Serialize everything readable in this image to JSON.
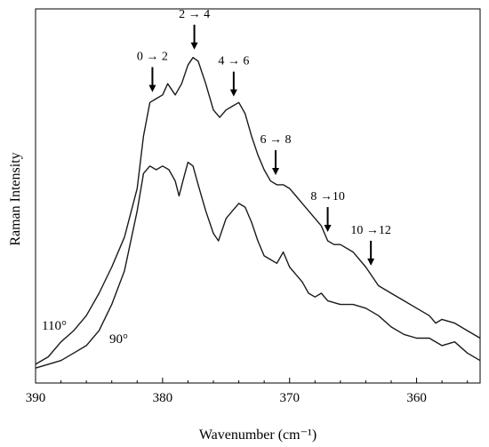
{
  "chart_data": {
    "type": "line",
    "title": "",
    "xlabel": "Wavenumber (cm⁻¹)",
    "ylabel": "Raman Intensity",
    "xlim": [
      390,
      355
    ],
    "x_reversed": true,
    "ylim": [
      0,
      100
    ],
    "y_ticks_shown": false,
    "grid": false,
    "legend": "none",
    "x_ticks": [
      390,
      380,
      370,
      360
    ],
    "x_tick_labels": [
      "390",
      "380",
      "370",
      "360"
    ],
    "series": [
      {
        "name": "110°",
        "color": "#1a1a1a",
        "points": [
          [
            390,
            5
          ],
          [
            389,
            7
          ],
          [
            388,
            11
          ],
          [
            387,
            14
          ],
          [
            386,
            18
          ],
          [
            385,
            24
          ],
          [
            384,
            31
          ],
          [
            383,
            39
          ],
          [
            382,
            52
          ],
          [
            381.5,
            66
          ],
          [
            381,
            75
          ],
          [
            380.5,
            76
          ],
          [
            380,
            77
          ],
          [
            379.6,
            80
          ],
          [
            379,
            77
          ],
          [
            378.5,
            80
          ],
          [
            378,
            85
          ],
          [
            377.6,
            87
          ],
          [
            377.2,
            86
          ],
          [
            376.6,
            80
          ],
          [
            376,
            73
          ],
          [
            375.5,
            71
          ],
          [
            375,
            73
          ],
          [
            374.5,
            74
          ],
          [
            374,
            75
          ],
          [
            373.5,
            72
          ],
          [
            373,
            66
          ],
          [
            372.5,
            61
          ],
          [
            372,
            57
          ],
          [
            371.5,
            54
          ],
          [
            371,
            53
          ],
          [
            370.5,
            53
          ],
          [
            370,
            52
          ],
          [
            369.5,
            50
          ],
          [
            369,
            48
          ],
          [
            368.5,
            46
          ],
          [
            368,
            44
          ],
          [
            367.5,
            42
          ],
          [
            367,
            38
          ],
          [
            366.5,
            37
          ],
          [
            366,
            37
          ],
          [
            365,
            35
          ],
          [
            364,
            31
          ],
          [
            363,
            26
          ],
          [
            362,
            24
          ],
          [
            361,
            22
          ],
          [
            360,
            20
          ],
          [
            359,
            18
          ],
          [
            358.5,
            16
          ],
          [
            358,
            17
          ],
          [
            357,
            16
          ],
          [
            356,
            14
          ],
          [
            355,
            12
          ]
        ]
      },
      {
        "name": "90°",
        "color": "#1a1a1a",
        "points": [
          [
            390,
            4
          ],
          [
            389,
            5
          ],
          [
            388,
            6
          ],
          [
            387,
            8
          ],
          [
            386,
            10
          ],
          [
            385,
            14
          ],
          [
            384,
            21
          ],
          [
            383,
            30
          ],
          [
            382,
            46
          ],
          [
            381.5,
            56
          ],
          [
            381,
            58
          ],
          [
            380.5,
            57
          ],
          [
            380,
            58
          ],
          [
            379.5,
            57
          ],
          [
            379,
            54
          ],
          [
            378.7,
            50
          ],
          [
            378.4,
            54
          ],
          [
            378,
            59
          ],
          [
            377.6,
            58
          ],
          [
            377.2,
            53
          ],
          [
            376.6,
            46
          ],
          [
            376,
            40
          ],
          [
            375.6,
            38
          ],
          [
            375,
            44
          ],
          [
            374.5,
            46
          ],
          [
            374,
            48
          ],
          [
            373.5,
            47
          ],
          [
            373,
            43
          ],
          [
            372.5,
            38
          ],
          [
            372,
            34
          ],
          [
            371.5,
            33
          ],
          [
            371,
            32
          ],
          [
            370.5,
            35
          ],
          [
            370,
            31
          ],
          [
            369.5,
            29
          ],
          [
            369,
            27
          ],
          [
            368.5,
            24
          ],
          [
            368,
            23
          ],
          [
            367.5,
            24
          ],
          [
            367,
            22
          ],
          [
            366,
            21
          ],
          [
            365,
            21
          ],
          [
            364,
            20
          ],
          [
            363,
            18
          ],
          [
            362,
            15
          ],
          [
            361,
            13
          ],
          [
            360,
            12
          ],
          [
            359,
            12
          ],
          [
            358,
            10
          ],
          [
            357,
            11
          ],
          [
            356,
            8
          ],
          [
            355,
            6
          ]
        ]
      }
    ],
    "annotations": [
      {
        "text": "0 → 2",
        "x": 380.8
      },
      {
        "text": "2 → 4",
        "x": 377.5
      },
      {
        "text": "4 → 6",
        "x": 374.4
      },
      {
        "text": "6 → 8",
        "x": 371.1
      },
      {
        "text": "8 →10",
        "x": 367.0
      },
      {
        "text": "10 →12",
        "x": 363.6
      }
    ]
  }
}
